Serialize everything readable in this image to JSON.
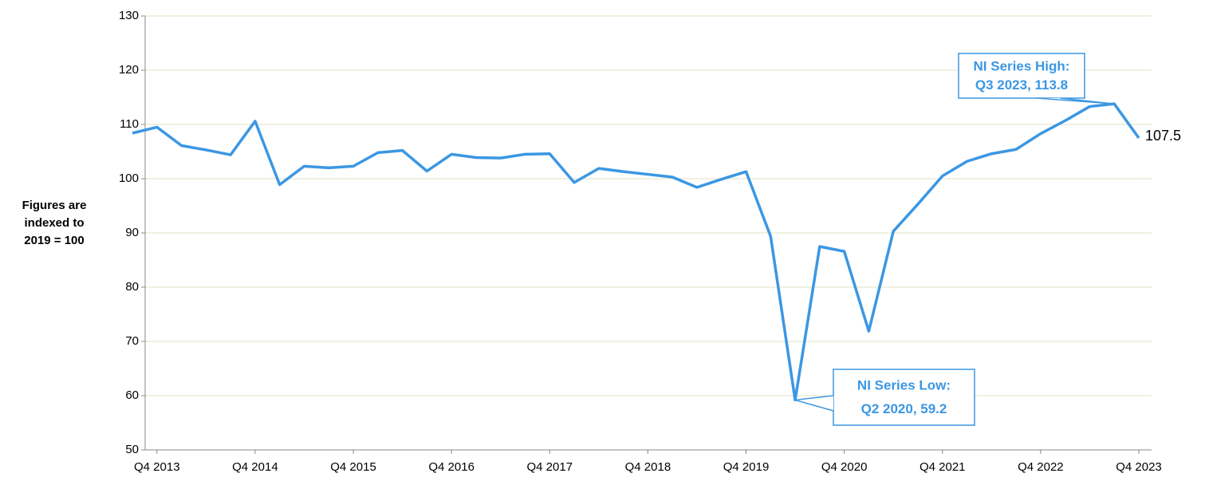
{
  "chart_data": {
    "type": "line",
    "y_label": [
      "Figures are",
      "indexed to",
      "2019 = 100"
    ],
    "categories": [
      null,
      "Q4 2013",
      null,
      null,
      null,
      "Q4 2014",
      null,
      null,
      null,
      "Q4 2015",
      null,
      null,
      null,
      "Q4 2016",
      null,
      null,
      null,
      "Q4 2017",
      null,
      null,
      null,
      "Q4 2018",
      null,
      null,
      null,
      "Q4 2019",
      null,
      null,
      null,
      "Q4 2020",
      null,
      null,
      null,
      "Q4 2021",
      null,
      null,
      null,
      "Q4 2022",
      null,
      null,
      null,
      "Q4 2023"
    ],
    "values": [
      108.4,
      109.5,
      106.1,
      105.3,
      104.4,
      110.6,
      98.9,
      102.3,
      102.0,
      102.3,
      104.8,
      105.2,
      101.4,
      104.5,
      103.9,
      103.8,
      104.5,
      104.6,
      99.3,
      101.9,
      101.3,
      100.8,
      100.3,
      98.4,
      99.9,
      101.3,
      89.4,
      59.2,
      87.5,
      86.6,
      71.9,
      90.3,
      95.3,
      100.5,
      103.2,
      104.6,
      105.4,
      108.3,
      110.7,
      113.3,
      113.8,
      107.5
    ],
    "color": "#3b97e3",
    "ylim": [
      50,
      130
    ],
    "yticks": [
      50,
      60,
      70,
      80,
      90,
      100,
      110,
      120,
      130
    ],
    "grid": true,
    "annotations": [
      {
        "lines": [
          "NI Series High:",
          "Q3 2023, 113.8"
        ]
      },
      {
        "lines": [
          "NI Series Low:",
          "Q2 2020, 59.2"
        ]
      }
    ]
  }
}
